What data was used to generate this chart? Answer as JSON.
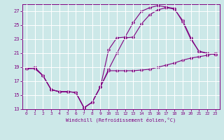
{
  "xlabel": "Windchill (Refroidissement éolien,°C)",
  "ylabel": "",
  "xlim": [
    -0.5,
    23.5
  ],
  "ylim": [
    13,
    28
  ],
  "yticks": [
    13,
    15,
    17,
    19,
    21,
    23,
    25,
    27
  ],
  "xticks": [
    0,
    1,
    2,
    3,
    4,
    5,
    6,
    7,
    8,
    9,
    10,
    11,
    12,
    13,
    14,
    15,
    16,
    17,
    18,
    19,
    20,
    21,
    22,
    23
  ],
  "background_color": "#cce8e8",
  "line_color": "#800080",
  "grid_color": "#ffffff",
  "line1_x": [
    0,
    1,
    2,
    3,
    4,
    5,
    6,
    7,
    8,
    9,
    10,
    11,
    12,
    13,
    14,
    15,
    16,
    17,
    18,
    19,
    20,
    21,
    22,
    23
  ],
  "line1_y": [
    18.8,
    19.0,
    17.8,
    15.8,
    15.5,
    15.5,
    15.4,
    13.2,
    14.0,
    16.2,
    18.5,
    18.5,
    18.5,
    18.5,
    18.6,
    18.7,
    19.0,
    19.3,
    19.6,
    20.0,
    20.3,
    20.5,
    20.7,
    21.0
  ],
  "line2_x": [
    0,
    1,
    2,
    3,
    4,
    5,
    6,
    7,
    8,
    9,
    10,
    11,
    12,
    13,
    14,
    15,
    16,
    17,
    18,
    19,
    20,
    21,
    22,
    23
  ],
  "line2_y": [
    18.8,
    18.8,
    17.8,
    15.8,
    15.5,
    15.5,
    15.4,
    13.2,
    14.0,
    16.2,
    21.5,
    23.2,
    23.3,
    25.4,
    27.0,
    27.5,
    27.8,
    27.6,
    27.4,
    25.5,
    23.0,
    21.3,
    21.0,
    20.8
  ],
  "line3_x": [
    0,
    1,
    2,
    3,
    4,
    5,
    6,
    7,
    8,
    9,
    10,
    11,
    12,
    13,
    14,
    15,
    16,
    17,
    18,
    19,
    20,
    21,
    22,
    23
  ],
  "line3_y": [
    18.8,
    18.9,
    17.8,
    15.8,
    15.5,
    15.5,
    15.4,
    13.2,
    14.0,
    16.2,
    18.7,
    21.0,
    23.2,
    23.3,
    25.2,
    26.5,
    27.2,
    27.5,
    27.3,
    25.7,
    23.2,
    21.2,
    21.0,
    20.8
  ],
  "figsize": [
    3.2,
    2.0
  ],
  "dpi": 100
}
